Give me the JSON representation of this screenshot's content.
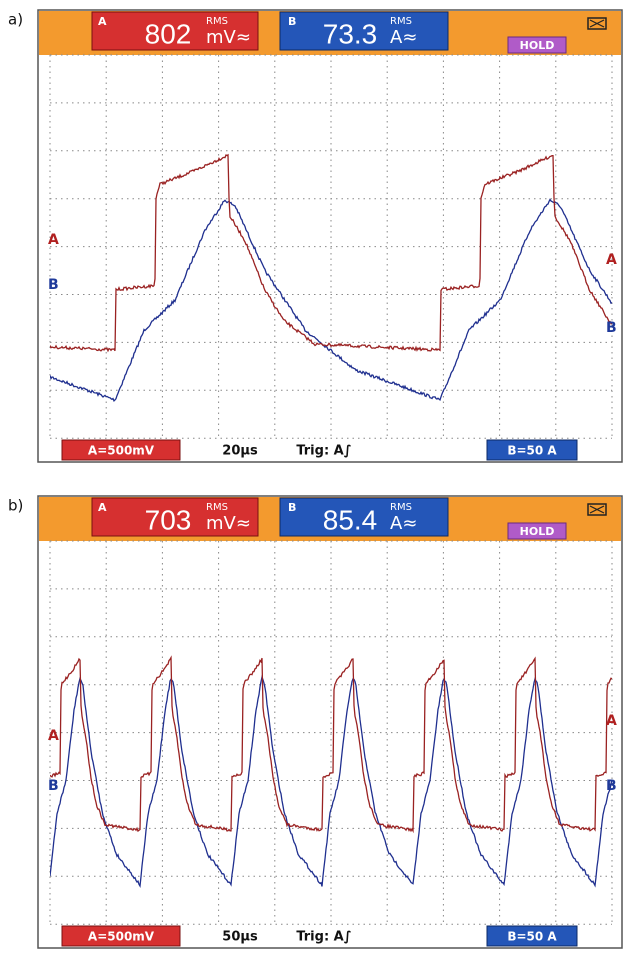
{
  "panels": [
    {
      "label": "a)",
      "channel_a": {
        "name": "A",
        "reading": "802",
        "unit": "mV≈",
        "mode": "RMS"
      },
      "channel_b": {
        "name": "B",
        "reading": "73.3",
        "unit": "A≈",
        "mode": "RMS"
      },
      "status": "HOLD",
      "footer": {
        "scale_a": "A=500mV",
        "timebase": "20µs",
        "trigger": "Trig: A∫",
        "scale_b": "B=50 A"
      }
    },
    {
      "label": "b)",
      "channel_a": {
        "name": "A",
        "reading": "703",
        "unit": "mV≈",
        "mode": "RMS"
      },
      "channel_b": {
        "name": "B",
        "reading": "85.4",
        "unit": "A≈",
        "mode": "RMS"
      },
      "status": "HOLD",
      "footer": {
        "scale_a": "A=500mV",
        "timebase": "50µs",
        "trigger": "Trig: A∫",
        "scale_b": "B=50 A"
      }
    }
  ]
}
